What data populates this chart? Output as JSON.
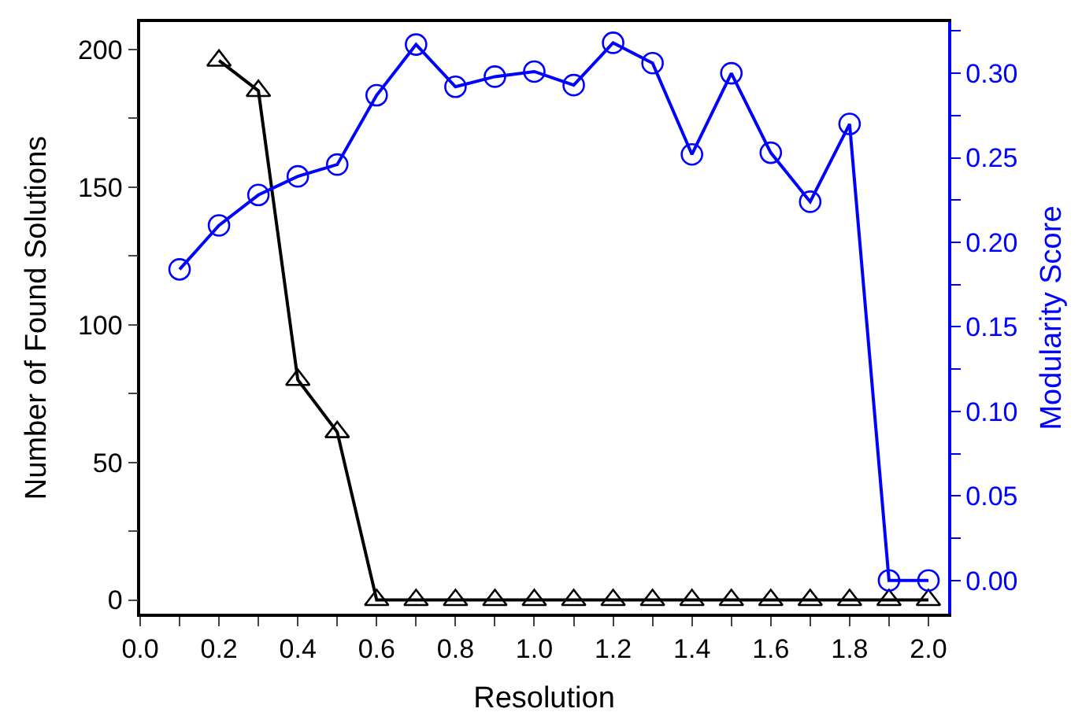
{
  "chart_data": {
    "type": "line",
    "xlabel": "Resolution",
    "ylabel": "Number of Found Solutions",
    "y2label": "Modularity Score",
    "x": [
      0.1,
      0.2,
      0.3,
      0.4,
      0.5,
      0.6,
      0.7,
      0.8,
      0.9,
      1.0,
      1.1,
      1.2,
      1.3,
      1.4,
      1.5,
      1.6,
      1.7,
      1.8,
      1.9,
      2.0
    ],
    "series": [
      {
        "color": "#000000",
        "marker": "triangle",
        "x": [
          0.2,
          0.3,
          0.4,
          0.5,
          0.6,
          0.7,
          0.8,
          0.9,
          1.0,
          1.1,
          1.2,
          1.3,
          1.4,
          1.5,
          1.6,
          1.7,
          1.8,
          1.9,
          2.0
        ],
        "values": [
          196,
          185,
          80,
          61,
          0,
          0,
          0,
          0,
          0,
          0,
          0,
          0,
          0,
          0,
          0,
          0,
          0,
          0,
          0
        ]
      },
      {
        "color": "#0000ff",
        "marker": "circle",
        "axis": "y2",
        "values": [
          0.184,
          0.21,
          0.228,
          0.239,
          0.246,
          0.287,
          0.317,
          0.292,
          0.298,
          0.301,
          0.293,
          0.318,
          0.306,
          0.252,
          0.3,
          0.253,
          0.224,
          0.27,
          0.0,
          0.0
        ]
      }
    ],
    "xlim": [
      0,
      2.05
    ],
    "xticks": [
      {
        "value": 0,
        "label": "0.0"
      },
      {
        "value": 0.1,
        "label": null
      },
      {
        "value": 0.2,
        "label": "0.2"
      },
      {
        "value": 0.3,
        "label": null
      },
      {
        "value": 0.4,
        "label": "0.4"
      },
      {
        "value": 0.5,
        "label": null
      },
      {
        "value": 0.6,
        "label": "0.6"
      },
      {
        "value": 0.7,
        "label": null
      },
      {
        "value": 0.8,
        "label": "0.8"
      },
      {
        "value": 0.9,
        "label": null
      },
      {
        "value": 1.0,
        "label": "1.0"
      },
      {
        "value": 1.1,
        "label": null
      },
      {
        "value": 1.2,
        "label": "1.2"
      },
      {
        "value": 1.3,
        "label": null
      },
      {
        "value": 1.4,
        "label": "1.4"
      },
      {
        "value": 1.5,
        "label": null
      },
      {
        "value": 1.6,
        "label": "1.6"
      },
      {
        "value": 1.7,
        "label": null
      },
      {
        "value": 1.8,
        "label": "1.8"
      },
      {
        "value": 1.9,
        "label": null
      },
      {
        "value": 2.0,
        "label": "2.0"
      }
    ],
    "ylim": [
      -5,
      210
    ],
    "yticks": [
      0,
      {
        "value": 25,
        "label": null
      },
      50,
      {
        "value": 75,
        "label": null
      },
      100,
      {
        "value": 125,
        "label": null
      },
      150,
      {
        "value": 175,
        "label": null
      },
      200
    ],
    "y2lim": [
      -0.0197,
      0.3303
    ],
    "y2ticks": [
      {
        "value": 0,
        "label": "0.00"
      },
      {
        "value": 0.025,
        "label": null
      },
      {
        "value": 0.05,
        "label": "0.05"
      },
      {
        "value": 0.075,
        "label": null
      },
      {
        "value": 0.1,
        "label": "0.10"
      },
      {
        "value": 0.125,
        "label": null
      },
      {
        "value": 0.15,
        "label": "0.15"
      },
      {
        "value": 0.175,
        "label": null
      },
      {
        "value": 0.2,
        "label": "0.20"
      },
      {
        "value": 0.225,
        "label": null
      },
      {
        "value": 0.25,
        "label": "0.25"
      },
      {
        "value": 0.275,
        "label": null
      },
      {
        "value": 0.3,
        "label": "0.30"
      },
      {
        "value": 0.325,
        "label": null
      }
    ],
    "line_style": "solid"
  }
}
